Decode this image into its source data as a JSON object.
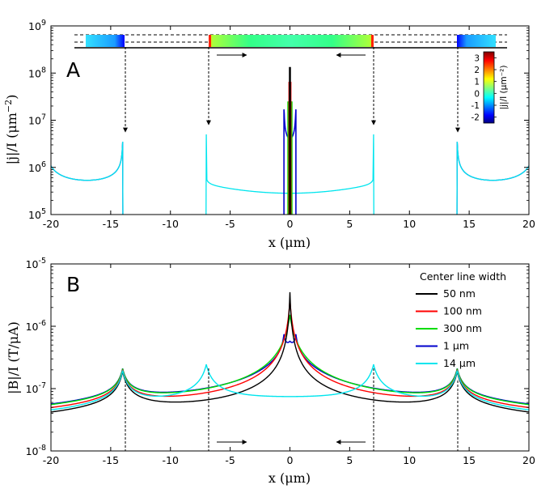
{
  "chart_data": [
    {
      "panel": "A",
      "type": "line",
      "ylabel": "|j|/I (μm⁻²)",
      "xlabel": "x (μm)",
      "x_ticks": [
        "-20",
        "-15",
        "-10",
        "-5",
        "0",
        "5",
        "10",
        "15",
        "20"
      ],
      "y_ticks": [
        "10⁵",
        "10⁶",
        "10⁷",
        "10⁸",
        "10⁹"
      ],
      "xlim": [
        -20,
        20
      ],
      "ylim": [
        100000,
        1000000000
      ],
      "yscale": "log",
      "grid": false,
      "colorbar": {
        "ticks": [
          "3",
          "2",
          "1",
          "0",
          "-1",
          "-2"
        ],
        "label": "|j|/I (μm⁻²)",
        "range": [
          -2.5,
          3.5
        ]
      },
      "series": [
        {
          "color": "#000000",
          "center_width_um": 0.05,
          "peak": 130000000
        },
        {
          "color": "#ff0000",
          "center_width_um": 0.1,
          "peak": 65000000
        },
        {
          "color": "#00dd00",
          "center_width_um": 0.3,
          "peak": 25000000
        },
        {
          "color": "#0000cc",
          "center_width_um": 1.0,
          "peak": 17000000
        },
        {
          "color": "#00e5ee",
          "center_width_um": 14.0,
          "peak": 5000000
        }
      ]
    },
    {
      "panel": "B",
      "type": "line",
      "ylabel": "|B|/I (T/μA)",
      "xlabel": "x (μm)",
      "x_ticks": [
        "-20",
        "-15",
        "-10",
        "-5",
        "0",
        "5",
        "10",
        "15",
        "20"
      ],
      "y_ticks": [
        "10⁻⁸",
        "10⁻⁷",
        "10⁻⁶",
        "10⁻⁵"
      ],
      "xlim": [
        -20,
        20
      ],
      "ylim": [
        1e-08,
        1e-05
      ],
      "yscale": "log",
      "grid": false,
      "legend": {
        "title": "Center line width",
        "location": "upper right",
        "entries": [
          {
            "label": "50 nm",
            "color": "#000000"
          },
          {
            "label": "100 nm",
            "color": "#ff0000"
          },
          {
            "label": "300 nm",
            "color": "#00dd00"
          },
          {
            "label": "1 μm",
            "color": "#0000cc"
          },
          {
            "label": "14 μm",
            "color": "#00e5ee"
          }
        ]
      },
      "series": [
        {
          "color": "#000000",
          "center_width_um": 0.05,
          "peak": 3.5e-06
        },
        {
          "color": "#ff0000",
          "center_width_um": 0.1,
          "peak": 2.7e-06
        },
        {
          "color": "#00dd00",
          "center_width_um": 0.3,
          "peak": 1.5e-06
        },
        {
          "color": "#0000cc",
          "center_width_um": 1.0,
          "peak": 8.5e-07
        },
        {
          "color": "#00e5ee",
          "center_width_um": 14.0,
          "peak": 2.4e-07
        }
      ]
    }
  ],
  "labels": {
    "panelA": "A",
    "panelB": "B",
    "power": "10",
    "expA": [
      "5",
      "6",
      "7",
      "8",
      "9"
    ],
    "expB": [
      "-8",
      "-7",
      "-6",
      "-5"
    ],
    "ylabelA_main": "|j|/I (μm",
    "ylabelA_sup": "−2",
    "ylabelA_end": ")",
    "ylabelB": "|B|/I (T/μA)",
    "xlabel": "x (μm)"
  }
}
